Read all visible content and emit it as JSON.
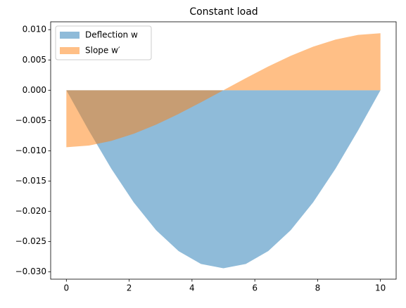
{
  "chart_data": {
    "type": "area",
    "title": "Constant load",
    "x": [
      0,
      0.714,
      1.429,
      2.143,
      2.857,
      3.571,
      4.286,
      5,
      5.714,
      6.429,
      7.143,
      7.857,
      8.571,
      9.286,
      10
    ],
    "series": [
      {
        "name": "Deflection w",
        "color": "#1f77b4",
        "values": [
          0,
          -0.00665,
          -0.01294,
          -0.01852,
          -0.02312,
          -0.02656,
          -0.02869,
          -0.0294,
          -0.02869,
          -0.02656,
          -0.02312,
          -0.01852,
          -0.01294,
          -0.00665,
          0
        ]
      },
      {
        "name": "Slope w′",
        "color": "#ff7f0e",
        "values": [
          -0.00941,
          -0.00914,
          -0.00837,
          -0.00719,
          -0.00568,
          -0.00392,
          -0.002,
          0,
          0.002,
          0.00392,
          0.00568,
          0.00719,
          0.00837,
          0.00914,
          0.00941
        ]
      }
    ],
    "xlim": [
      -0.5,
      10.5
    ],
    "xticks": [
      0,
      2,
      4,
      6,
      8,
      10
    ],
    "ylim": [
      -0.0312,
      0.0113
    ],
    "yticks": [
      {
        "value": 0.01,
        "label": "0.010"
      },
      {
        "value": 0.005,
        "label": "0.005"
      },
      {
        "value": 0,
        "label": "0.000"
      },
      {
        "value": -0.005,
        "label": "−0.005"
      },
      {
        "value": -0.01,
        "label": "−0.010"
      },
      {
        "value": -0.015,
        "label": "−0.015"
      },
      {
        "value": -0.02,
        "label": "−0.020"
      },
      {
        "value": -0.025,
        "label": "−0.025"
      },
      {
        "value": -0.03,
        "label": "−0.030"
      }
    ],
    "legend": "upper left",
    "alpha": 0.5
  }
}
